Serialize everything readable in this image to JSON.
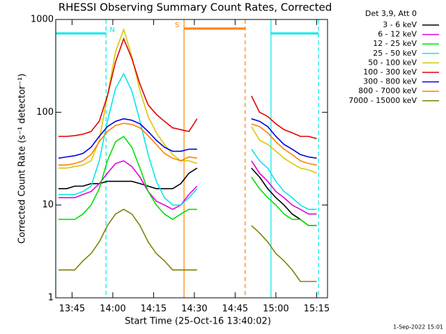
{
  "chart_data": {
    "type": "line",
    "title": "RHESSI Observing Summary Count Rates, Corrected",
    "legend_title": "Det 3,9, Att 0",
    "x_label": "Start Time (25-Oct-16 13:40:02)",
    "y_label": "Corrected Count Rate (s⁻¹ detector⁻¹)",
    "footer": "1-Sep-2022 15:01",
    "log_y": true,
    "xlim": [
      -1,
      99
    ],
    "ylim": [
      1,
      1000
    ],
    "yticks": [
      1,
      10,
      100,
      1000
    ],
    "xticks": [
      {
        "value": 5,
        "label": "13:45"
      },
      {
        "value": 20,
        "label": "14:00"
      },
      {
        "value": 35,
        "label": "14:15"
      },
      {
        "value": 50,
        "label": "14:30"
      },
      {
        "value": 65,
        "label": "14:45"
      },
      {
        "value": 80,
        "label": "15:00"
      },
      {
        "value": 95,
        "label": "15:15"
      }
    ],
    "x": [
      0,
      3,
      6,
      9,
      12,
      15,
      18,
      21,
      24,
      27,
      30,
      33,
      36,
      39,
      42,
      45,
      48,
      51,
      60,
      71,
      74,
      77,
      80,
      83,
      86,
      89,
      92,
      95
    ],
    "series": [
      {
        "name": "3 - 6 keV",
        "color": "#000000",
        "values": [
          15,
          15,
          16,
          16,
          17,
          17,
          18,
          18,
          18,
          18,
          17,
          16,
          15,
          15,
          15,
          17,
          22,
          25,
          null,
          25,
          20,
          15,
          12,
          10,
          8,
          7,
          6,
          6
        ]
      },
      {
        "name": "6 - 12 keV",
        "color": "#e000e0",
        "values": [
          12,
          12,
          12,
          13,
          14,
          17,
          22,
          28,
          30,
          26,
          20,
          14,
          11,
          10,
          9,
          10,
          13,
          16,
          null,
          30,
          22,
          18,
          14,
          12,
          10,
          9,
          8,
          8
        ]
      },
      {
        "name": "12 - 25 keV",
        "color": "#00e000",
        "values": [
          7,
          7,
          7,
          8,
          10,
          15,
          30,
          48,
          55,
          42,
          25,
          14,
          10,
          8,
          7,
          8,
          9,
          9,
          null,
          20,
          15,
          12,
          10,
          8,
          7,
          7,
          6,
          6
        ]
      },
      {
        "name": "25 - 50 keV",
        "color": "#00e8e8",
        "values": [
          13,
          13,
          13,
          14,
          16,
          30,
          80,
          180,
          260,
          170,
          80,
          35,
          18,
          12,
          10,
          10,
          12,
          15,
          null,
          40,
          30,
          25,
          18,
          14,
          12,
          10,
          9,
          9
        ]
      },
      {
        "name": "50 - 100 keV",
        "color": "#d8c800",
        "values": [
          25,
          25,
          26,
          27,
          30,
          50,
          150,
          450,
          780,
          400,
          170,
          90,
          60,
          45,
          35,
          30,
          30,
          28,
          null,
          70,
          50,
          45,
          38,
          32,
          28,
          25,
          24,
          22
        ]
      },
      {
        "name": "100 - 300 keV",
        "color": "#e00000",
        "values": [
          55,
          55,
          56,
          58,
          62,
          80,
          150,
          350,
          620,
          380,
          200,
          120,
          95,
          80,
          68,
          65,
          62,
          85,
          null,
          150,
          100,
          90,
          75,
          65,
          60,
          55,
          55,
          52
        ]
      },
      {
        "name": "300 - 800 keV",
        "color": "#0000e0",
        "values": [
          32,
          33,
          34,
          36,
          42,
          55,
          70,
          80,
          85,
          82,
          75,
          62,
          50,
          42,
          38,
          38,
          40,
          40,
          null,
          85,
          80,
          70,
          55,
          45,
          40,
          35,
          33,
          32
        ]
      },
      {
        "name": "800 - 7000 keV",
        "color": "#ff8000",
        "values": [
          27,
          27,
          28,
          30,
          35,
          48,
          62,
          72,
          76,
          74,
          68,
          56,
          45,
          36,
          32,
          30,
          33,
          32,
          null,
          75,
          70,
          60,
          48,
          40,
          35,
          30,
          28,
          27
        ]
      },
      {
        "name": "7000 - 15000 keV",
        "color": "#808000",
        "values": [
          2,
          2,
          2,
          2.5,
          3,
          4,
          6,
          8,
          9,
          8,
          6,
          4,
          3,
          2.5,
          2,
          2,
          2,
          2,
          null,
          6,
          5,
          4,
          3,
          2.5,
          2,
          1.5,
          1.5,
          1.5
        ]
      }
    ],
    "flags": [
      {
        "label": "N",
        "color": "#00e8e8",
        "intervals": [
          [
            -1,
            17.5
          ],
          [
            78.2,
            95.7
          ]
        ]
      },
      {
        "label": "S",
        "color": "#ff8000",
        "intervals": [
          [
            46.2,
            68.7
          ]
        ]
      }
    ]
  }
}
